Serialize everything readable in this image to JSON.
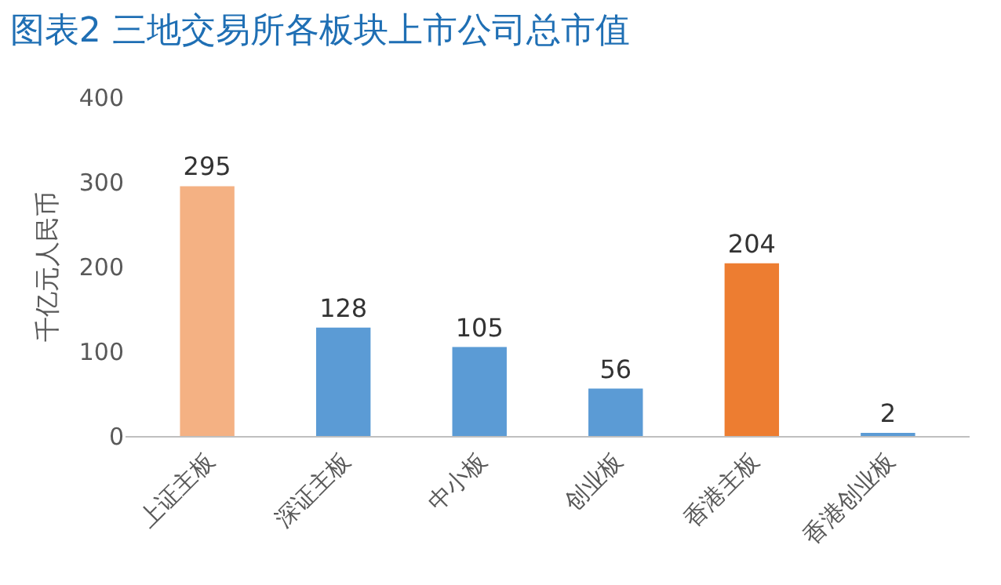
{
  "chart_data": {
    "type": "bar",
    "title": "图表2 三地交易所各板块上市公司总市值",
    "ylabel": "千亿元人民币",
    "categories": [
      "上证主板",
      "深证主板",
      "中小板",
      "创业板",
      "香港主板",
      "香港创业板"
    ],
    "values": [
      295,
      128,
      105,
      56,
      204,
      2
    ],
    "colors": [
      "#f4b183",
      "#5b9bd5",
      "#5b9bd5",
      "#5b9bd5",
      "#ed7d31",
      "#5b9bd5"
    ],
    "ylim": [
      0,
      400
    ],
    "yticks": [
      0,
      100,
      200,
      300,
      400
    ],
    "grid": false,
    "data_labels": true
  }
}
